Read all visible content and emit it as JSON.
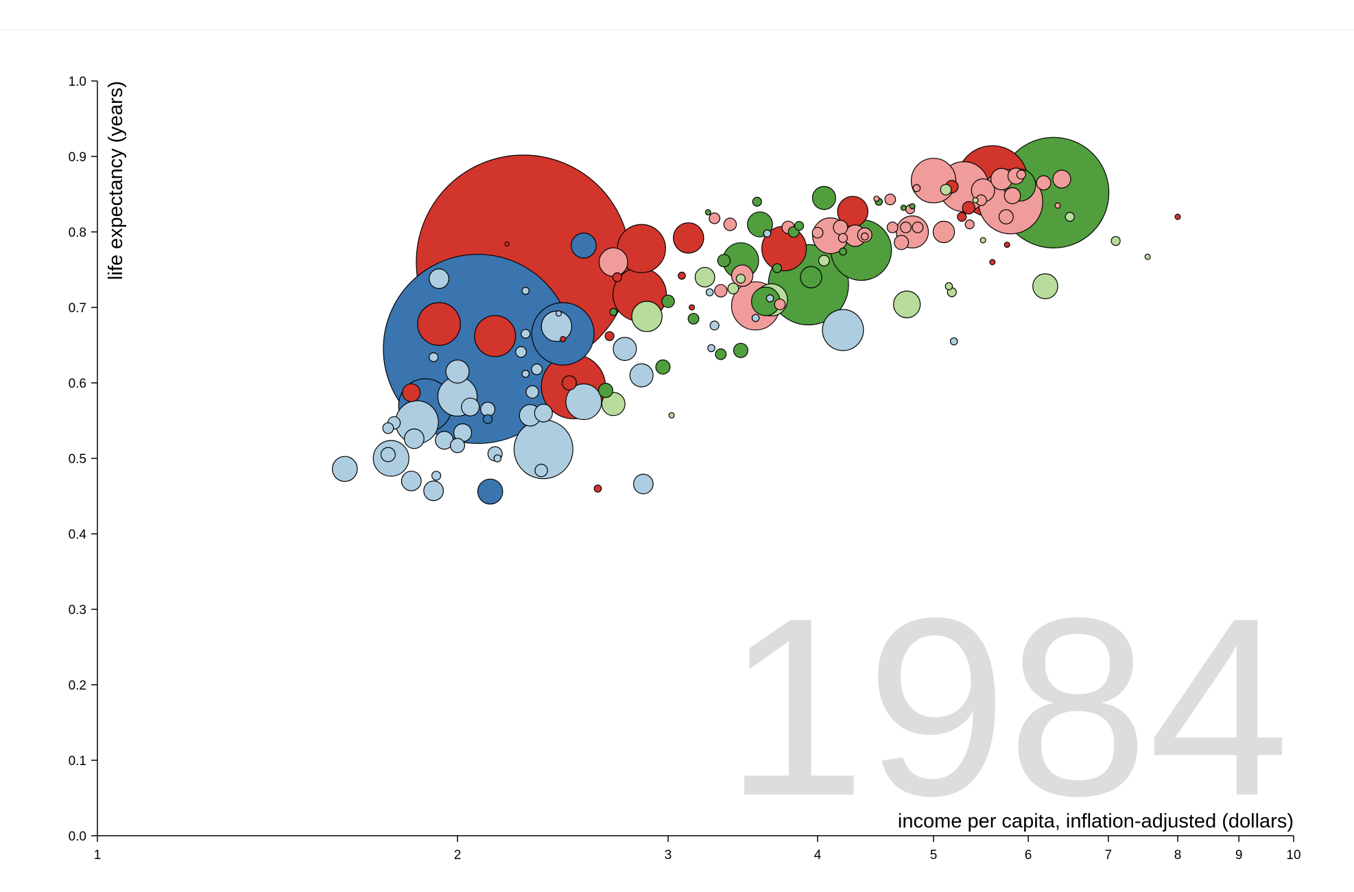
{
  "chart_data": {
    "type": "scatter",
    "xlabel": "income per capita, inflation-adjusted (dollars)",
    "ylabel": "life expectancy (years)",
    "year": "1984",
    "x_scale": "log",
    "xlim": [
      1,
      10
    ],
    "ylim": [
      0.0,
      1.0
    ],
    "x_ticks": [
      1,
      2,
      3,
      4,
      5,
      6,
      7,
      8,
      9,
      10
    ],
    "y_ticks": [
      "0.0",
      "0.1",
      "0.2",
      "0.3",
      "0.4",
      "0.5",
      "0.6",
      "0.7",
      "0.8",
      "0.9",
      "1.0"
    ],
    "grid": false,
    "colors": {
      "dark_blue": "#3b75af",
      "light_blue": "#aecde1",
      "dark_red": "#d1352b",
      "light_red": "#f09c9a",
      "dark_green": "#519e3e",
      "light_green": "#b8dc9b",
      "year_text": "#dddddd"
    },
    "points": [
      {
        "x": 2.27,
        "y": 0.76,
        "r": 1.2,
        "c": "dark_red"
      },
      {
        "x": 2.08,
        "y": 0.645,
        "r": 1.06,
        "c": "dark_blue"
      },
      {
        "x": 6.3,
        "y": 0.852,
        "r": 0.62,
        "c": "dark_green"
      },
      {
        "x": 5.6,
        "y": 0.867,
        "r": 0.4,
        "c": "dark_red"
      },
      {
        "x": 2.5,
        "y": 0.595,
        "r": 0.36,
        "c": "dark_red"
      },
      {
        "x": 5.8,
        "y": 0.84,
        "r": 0.36,
        "c": "light_red"
      },
      {
        "x": 2.45,
        "y": 0.665,
        "r": 0.35,
        "c": "dark_blue"
      },
      {
        "x": 3.93,
        "y": 0.73,
        "r": 0.45,
        "c": "dark_green"
      },
      {
        "x": 4.35,
        "y": 0.776,
        "r": 0.34,
        "c": "dark_green"
      },
      {
        "x": 2.36,
        "y": 0.512,
        "r": 0.33,
        "c": "light_blue"
      },
      {
        "x": 1.88,
        "y": 0.57,
        "r": 0.3,
        "c": "dark_blue"
      },
      {
        "x": 2.84,
        "y": 0.717,
        "r": 0.3,
        "c": "dark_red"
      },
      {
        "x": 5.3,
        "y": 0.86,
        "r": 0.28,
        "c": "light_red"
      },
      {
        "x": 2.85,
        "y": 0.778,
        "r": 0.27,
        "c": "dark_red"
      },
      {
        "x": 5.0,
        "y": 0.868,
        "r": 0.25,
        "c": "light_red"
      },
      {
        "x": 3.75,
        "y": 0.778,
        "r": 0.25,
        "c": "dark_red"
      },
      {
        "x": 1.93,
        "y": 0.678,
        "r": 0.24,
        "c": "dark_red"
      },
      {
        "x": 1.85,
        "y": 0.548,
        "r": 0.24,
        "c": "light_blue"
      },
      {
        "x": 2.15,
        "y": 0.662,
        "r": 0.23,
        "c": "dark_red"
      },
      {
        "x": 2.0,
        "y": 0.582,
        "r": 0.22,
        "c": "light_blue"
      },
      {
        "x": 3.55,
        "y": 0.702,
        "r": 0.27,
        "c": "light_red"
      },
      {
        "x": 4.2,
        "y": 0.67,
        "r": 0.23,
        "c": "light_blue"
      },
      {
        "x": 3.45,
        "y": 0.762,
        "r": 0.2,
        "c": "dark_green"
      },
      {
        "x": 4.1,
        "y": 0.795,
        "r": 0.2,
        "c": "light_red"
      },
      {
        "x": 1.76,
        "y": 0.5,
        "r": 0.2,
        "c": "light_blue"
      },
      {
        "x": 2.55,
        "y": 0.575,
        "r": 0.2,
        "c": "light_blue"
      },
      {
        "x": 3.66,
        "y": 0.71,
        "r": 0.18,
        "c": "light_green"
      },
      {
        "x": 4.8,
        "y": 0.8,
        "r": 0.18,
        "c": "light_red"
      },
      {
        "x": 5.9,
        "y": 0.862,
        "r": 0.18,
        "c": "dark_green"
      },
      {
        "x": 2.88,
        "y": 0.688,
        "r": 0.17,
        "c": "light_green"
      },
      {
        "x": 4.28,
        "y": 0.827,
        "r": 0.17,
        "c": "dark_red"
      },
      {
        "x": 3.12,
        "y": 0.792,
        "r": 0.17,
        "c": "dark_red"
      },
      {
        "x": 2.42,
        "y": 0.675,
        "r": 0.17,
        "c": "light_blue"
      },
      {
        "x": 3.62,
        "y": 0.708,
        "r": 0.16,
        "c": "dark_green"
      },
      {
        "x": 2.7,
        "y": 0.76,
        "r": 0.16,
        "c": "light_red"
      },
      {
        "x": 3.58,
        "y": 0.81,
        "r": 0.14,
        "c": "dark_green"
      },
      {
        "x": 6.2,
        "y": 0.728,
        "r": 0.14,
        "c": "light_green"
      },
      {
        "x": 4.75,
        "y": 0.704,
        "r": 0.15,
        "c": "light_green"
      },
      {
        "x": 2.55,
        "y": 0.782,
        "r": 0.14,
        "c": "dark_blue"
      },
      {
        "x": 1.93,
        "y": 0.738,
        "r": 0.11,
        "c": "light_blue"
      },
      {
        "x": 1.61,
        "y": 0.486,
        "r": 0.14,
        "c": "light_blue"
      },
      {
        "x": 2.13,
        "y": 0.456,
        "r": 0.14,
        "c": "dark_blue"
      },
      {
        "x": 2.7,
        "y": 0.572,
        "r": 0.13,
        "c": "light_green"
      },
      {
        "x": 2.85,
        "y": 0.61,
        "r": 0.13,
        "c": "light_blue"
      },
      {
        "x": 2.76,
        "y": 0.645,
        "r": 0.13,
        "c": "light_blue"
      },
      {
        "x": 2.0,
        "y": 0.615,
        "r": 0.13,
        "c": "light_blue"
      },
      {
        "x": 3.46,
        "y": 0.742,
        "r": 0.12,
        "c": "light_red"
      },
      {
        "x": 4.05,
        "y": 0.845,
        "r": 0.13,
        "c": "dark_green"
      },
      {
        "x": 5.5,
        "y": 0.855,
        "r": 0.13,
        "c": "light_red"
      },
      {
        "x": 5.7,
        "y": 0.87,
        "r": 0.12,
        "c": "light_red"
      },
      {
        "x": 3.95,
        "y": 0.74,
        "r": 0.12,
        "c": "dark_green"
      },
      {
        "x": 3.22,
        "y": 0.74,
        "r": 0.11,
        "c": "light_green"
      },
      {
        "x": 5.1,
        "y": 0.8,
        "r": 0.12,
        "c": "light_red"
      },
      {
        "x": 6.4,
        "y": 0.87,
        "r": 0.1,
        "c": "light_red"
      },
      {
        "x": 4.3,
        "y": 0.795,
        "r": 0.12,
        "c": "light_red"
      },
      {
        "x": 2.86,
        "y": 0.466,
        "r": 0.11,
        "c": "light_blue"
      },
      {
        "x": 1.83,
        "y": 0.47,
        "r": 0.11,
        "c": "light_blue"
      },
      {
        "x": 1.91,
        "y": 0.457,
        "r": 0.11,
        "c": "light_blue"
      },
      {
        "x": 1.84,
        "y": 0.526,
        "r": 0.11,
        "c": "light_blue"
      },
      {
        "x": 1.95,
        "y": 0.524,
        "r": 0.1,
        "c": "light_blue"
      },
      {
        "x": 2.02,
        "y": 0.534,
        "r": 0.1,
        "c": "light_blue"
      },
      {
        "x": 2.3,
        "y": 0.557,
        "r": 0.12,
        "c": "light_blue"
      },
      {
        "x": 2.05,
        "y": 0.568,
        "r": 0.1,
        "c": "light_blue"
      },
      {
        "x": 2.36,
        "y": 0.56,
        "r": 0.1,
        "c": "light_blue"
      },
      {
        "x": 1.83,
        "y": 0.587,
        "r": 0.1,
        "c": "dark_red"
      },
      {
        "x": 2.12,
        "y": 0.565,
        "r": 0.08,
        "c": "light_blue"
      },
      {
        "x": 2.0,
        "y": 0.517,
        "r": 0.08,
        "c": "light_blue"
      },
      {
        "x": 2.15,
        "y": 0.506,
        "r": 0.08,
        "c": "light_blue"
      },
      {
        "x": 1.75,
        "y": 0.505,
        "r": 0.08,
        "c": "light_blue"
      },
      {
        "x": 1.77,
        "y": 0.547,
        "r": 0.07,
        "c": "light_blue"
      },
      {
        "x": 1.75,
        "y": 0.54,
        "r": 0.06,
        "c": "light_blue"
      },
      {
        "x": 2.31,
        "y": 0.588,
        "r": 0.07,
        "c": "light_blue"
      },
      {
        "x": 2.26,
        "y": 0.641,
        "r": 0.06,
        "c": "light_blue"
      },
      {
        "x": 2.28,
        "y": 0.665,
        "r": 0.05,
        "c": "light_blue"
      },
      {
        "x": 2.33,
        "y": 0.618,
        "r": 0.06,
        "c": "light_blue"
      },
      {
        "x": 2.35,
        "y": 0.484,
        "r": 0.07,
        "c": "light_blue"
      },
      {
        "x": 1.91,
        "y": 0.634,
        "r": 0.05,
        "c": "light_blue"
      },
      {
        "x": 1.92,
        "y": 0.477,
        "r": 0.05,
        "c": "light_blue"
      },
      {
        "x": 2.12,
        "y": 0.552,
        "r": 0.05,
        "c": "dark_blue"
      },
      {
        "x": 2.16,
        "y": 0.5,
        "r": 0.04,
        "c": "light_blue"
      },
      {
        "x": 2.28,
        "y": 0.612,
        "r": 0.04,
        "c": "light_blue"
      },
      {
        "x": 2.28,
        "y": 0.722,
        "r": 0.04,
        "c": "light_blue"
      },
      {
        "x": 2.43,
        "y": 0.692,
        "r": 0.03,
        "c": "light_blue"
      },
      {
        "x": 2.45,
        "y": 0.658,
        "r": 0.03,
        "c": "dark_red"
      },
      {
        "x": 2.48,
        "y": 0.6,
        "r": 0.08,
        "c": "dark_red"
      },
      {
        "x": 2.62,
        "y": 0.46,
        "r": 0.04,
        "c": "dark_red"
      },
      {
        "x": 2.68,
        "y": 0.662,
        "r": 0.05,
        "c": "dark_red"
      },
      {
        "x": 2.7,
        "y": 0.694,
        "r": 0.04,
        "c": "dark_green"
      },
      {
        "x": 2.66,
        "y": 0.59,
        "r": 0.08,
        "c": "dark_green"
      },
      {
        "x": 2.72,
        "y": 0.74,
        "r": 0.05,
        "c": "dark_red"
      },
      {
        "x": 2.2,
        "y": 0.784,
        "r": 0.02,
        "c": "dark_red"
      },
      {
        "x": 3.0,
        "y": 0.708,
        "r": 0.07,
        "c": "dark_green"
      },
      {
        "x": 2.97,
        "y": 0.621,
        "r": 0.08,
        "c": "dark_green"
      },
      {
        "x": 3.02,
        "y": 0.557,
        "r": 0.03,
        "c": "light_green"
      },
      {
        "x": 3.08,
        "y": 0.742,
        "r": 0.04,
        "c": "dark_red"
      },
      {
        "x": 3.15,
        "y": 0.685,
        "r": 0.06,
        "c": "dark_green"
      },
      {
        "x": 3.14,
        "y": 0.7,
        "r": 0.03,
        "c": "dark_red"
      },
      {
        "x": 3.28,
        "y": 0.818,
        "r": 0.06,
        "c": "light_red"
      },
      {
        "x": 3.25,
        "y": 0.72,
        "r": 0.04,
        "c": "light_blue"
      },
      {
        "x": 3.24,
        "y": 0.826,
        "r": 0.03,
        "c": "dark_green"
      },
      {
        "x": 3.28,
        "y": 0.676,
        "r": 0.05,
        "c": "light_blue"
      },
      {
        "x": 3.32,
        "y": 0.638,
        "r": 0.06,
        "c": "dark_green"
      },
      {
        "x": 3.34,
        "y": 0.762,
        "r": 0.07,
        "c": "dark_green"
      },
      {
        "x": 3.32,
        "y": 0.722,
        "r": 0.07,
        "c": "light_red"
      },
      {
        "x": 3.26,
        "y": 0.646,
        "r": 0.04,
        "c": "light_blue"
      },
      {
        "x": 3.45,
        "y": 0.643,
        "r": 0.08,
        "c": "dark_green"
      },
      {
        "x": 3.4,
        "y": 0.725,
        "r": 0.06,
        "c": "light_green"
      },
      {
        "x": 3.45,
        "y": 0.738,
        "r": 0.05,
        "c": "light_green"
      },
      {
        "x": 3.38,
        "y": 0.81,
        "r": 0.07,
        "c": "light_red"
      },
      {
        "x": 3.55,
        "y": 0.686,
        "r": 0.04,
        "c": "light_blue"
      },
      {
        "x": 3.56,
        "y": 0.84,
        "r": 0.05,
        "c": "dark_green"
      },
      {
        "x": 3.63,
        "y": 0.798,
        "r": 0.04,
        "c": "light_blue"
      },
      {
        "x": 3.65,
        "y": 0.712,
        "r": 0.04,
        "c": "light_blue"
      },
      {
        "x": 3.7,
        "y": 0.752,
        "r": 0.05,
        "c": "dark_green"
      },
      {
        "x": 3.72,
        "y": 0.704,
        "r": 0.06,
        "c": "light_red"
      },
      {
        "x": 3.78,
        "y": 0.806,
        "r": 0.07,
        "c": "light_red"
      },
      {
        "x": 3.82,
        "y": 0.8,
        "r": 0.06,
        "c": "dark_green"
      },
      {
        "x": 3.86,
        "y": 0.808,
        "r": 0.05,
        "c": "dark_green"
      },
      {
        "x": 4.05,
        "y": 0.762,
        "r": 0.06,
        "c": "light_green"
      },
      {
        "x": 4.0,
        "y": 0.799,
        "r": 0.06,
        "c": "light_red"
      },
      {
        "x": 4.18,
        "y": 0.806,
        "r": 0.08,
        "c": "light_red"
      },
      {
        "x": 4.2,
        "y": 0.774,
        "r": 0.04,
        "c": "dark_green"
      },
      {
        "x": 4.2,
        "y": 0.792,
        "r": 0.05,
        "c": "light_red"
      },
      {
        "x": 4.38,
        "y": 0.796,
        "r": 0.08,
        "c": "light_red"
      },
      {
        "x": 4.38,
        "y": 0.794,
        "r": 0.04,
        "c": "light_red"
      },
      {
        "x": 4.5,
        "y": 0.84,
        "r": 0.04,
        "c": "dark_green"
      },
      {
        "x": 4.48,
        "y": 0.844,
        "r": 0.03,
        "c": "light_red"
      },
      {
        "x": 4.6,
        "y": 0.843,
        "r": 0.06,
        "c": "light_red"
      },
      {
        "x": 4.62,
        "y": 0.806,
        "r": 0.06,
        "c": "light_red"
      },
      {
        "x": 4.7,
        "y": 0.786,
        "r": 0.08,
        "c": "light_red"
      },
      {
        "x": 4.74,
        "y": 0.806,
        "r": 0.06,
        "c": "light_red"
      },
      {
        "x": 4.78,
        "y": 0.83,
        "r": 0.05,
        "c": "light_red"
      },
      {
        "x": 4.72,
        "y": 0.832,
        "r": 0.03,
        "c": "dark_green"
      },
      {
        "x": 4.8,
        "y": 0.834,
        "r": 0.03,
        "c": "dark_green"
      },
      {
        "x": 4.85,
        "y": 0.806,
        "r": 0.06,
        "c": "light_red"
      },
      {
        "x": 4.84,
        "y": 0.858,
        "r": 0.04,
        "c": "light_red"
      },
      {
        "x": 5.18,
        "y": 0.86,
        "r": 0.07,
        "c": "dark_red"
      },
      {
        "x": 5.12,
        "y": 0.856,
        "r": 0.06,
        "c": "light_green"
      },
      {
        "x": 5.28,
        "y": 0.82,
        "r": 0.05,
        "c": "dark_red"
      },
      {
        "x": 5.18,
        "y": 0.72,
        "r": 0.05,
        "c": "light_green"
      },
      {
        "x": 5.15,
        "y": 0.728,
        "r": 0.04,
        "c": "light_green"
      },
      {
        "x": 5.2,
        "y": 0.655,
        "r": 0.04,
        "c": "light_blue"
      },
      {
        "x": 5.36,
        "y": 0.81,
        "r": 0.05,
        "c": "light_red"
      },
      {
        "x": 5.35,
        "y": 0.832,
        "r": 0.07,
        "c": "dark_red"
      },
      {
        "x": 5.48,
        "y": 0.842,
        "r": 0.06,
        "c": "light_red"
      },
      {
        "x": 5.5,
        "y": 0.789,
        "r": 0.03,
        "c": "light_green"
      },
      {
        "x": 5.6,
        "y": 0.76,
        "r": 0.03,
        "c": "dark_red"
      },
      {
        "x": 5.42,
        "y": 0.842,
        "r": 0.03,
        "c": "light_green"
      },
      {
        "x": 5.86,
        "y": 0.874,
        "r": 0.09,
        "c": "light_red"
      },
      {
        "x": 5.92,
        "y": 0.876,
        "r": 0.05,
        "c": "light_red"
      },
      {
        "x": 5.82,
        "y": 0.848,
        "r": 0.09,
        "c": "light_red"
      },
      {
        "x": 5.75,
        "y": 0.82,
        "r": 0.08,
        "c": "light_red"
      },
      {
        "x": 5.76,
        "y": 0.783,
        "r": 0.03,
        "c": "dark_red"
      },
      {
        "x": 6.18,
        "y": 0.865,
        "r": 0.08,
        "c": "light_red"
      },
      {
        "x": 6.35,
        "y": 0.835,
        "r": 0.03,
        "c": "light_red"
      },
      {
        "x": 6.5,
        "y": 0.82,
        "r": 0.05,
        "c": "light_green"
      },
      {
        "x": 7.1,
        "y": 0.788,
        "r": 0.05,
        "c": "light_green"
      },
      {
        "x": 7.55,
        "y": 0.767,
        "r": 0.03,
        "c": "light_green"
      },
      {
        "x": 8.0,
        "y": 0.82,
        "r": 0.03,
        "c": "dark_red"
      }
    ]
  }
}
